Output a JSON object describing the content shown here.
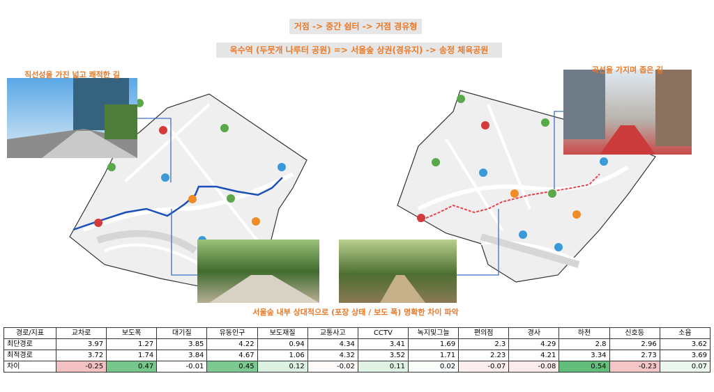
{
  "header": {
    "title": "거점 -> 중간 쉼터 -> 거점 경유형",
    "subtitle": "옥수역 (두뭇개 나루터 공원) => 서울숲 상권(경유지) -> 송정 체육공원"
  },
  "captions": {
    "left": "직선성을 가진 넓고 쾌적한 길",
    "right": "곡선을 가지며 좁은 길",
    "bottom": "서울숲 내부 상대적으로 (포장 상태 / 보도 폭) 명확한 차이 파악"
  },
  "table": {
    "header": [
      "경로/지표",
      "교차로",
      "보도폭",
      "대기질",
      "유동인구",
      "보도재질",
      "교통사고",
      "CCTV",
      "녹지및그늘",
      "편의점",
      "경사",
      "하천",
      "신호등",
      "소음"
    ],
    "rows": [
      [
        "최단경로",
        3.97,
        1.27,
        3.85,
        4.22,
        0.94,
        4.34,
        3.41,
        1.69,
        2.3,
        4.29,
        2.8,
        2.96,
        3.62
      ],
      [
        "최적경로",
        3.72,
        1.74,
        3.84,
        4.67,
        1.06,
        4.32,
        3.52,
        1.71,
        2.23,
        4.21,
        3.34,
        2.73,
        3.69
      ],
      [
        "차이",
        -0.25,
        0.47,
        -0.01,
        0.45,
        0.12,
        -0.02,
        0.11,
        0.02,
        -0.07,
        -0.08,
        0.54,
        -0.23,
        0.07
      ]
    ]
  }
}
